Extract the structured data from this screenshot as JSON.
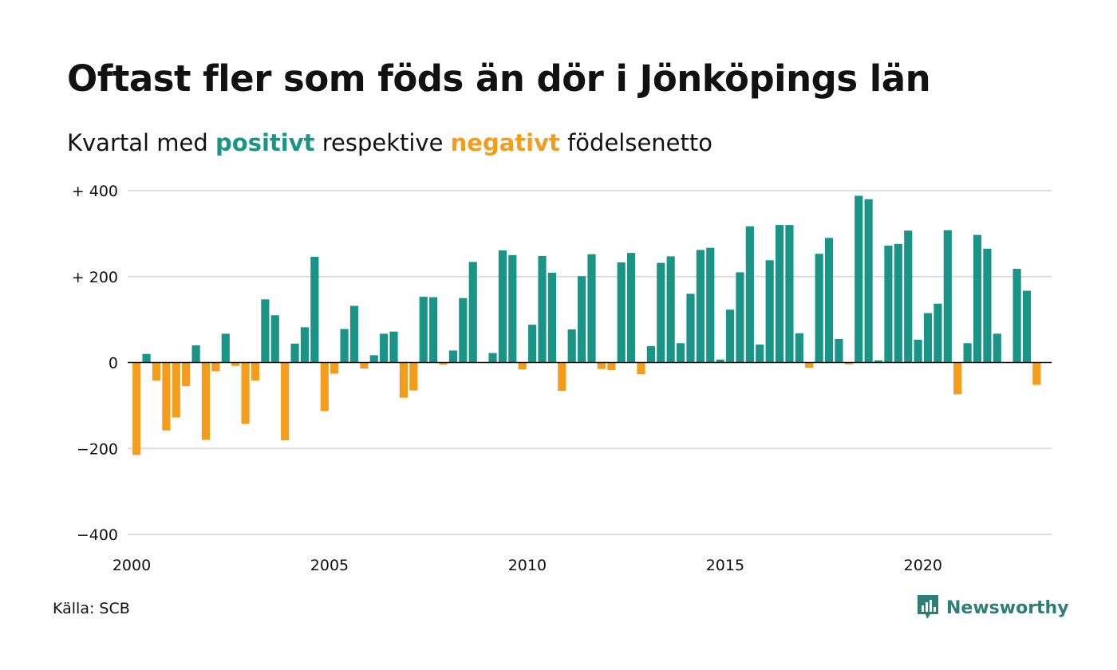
{
  "title": "Oftast fler som föds än dör i Jönköpings län",
  "subtitle": {
    "prefix": "Kvartal med ",
    "positive_word": "positivt",
    "middle": " respektive ",
    "negative_word": "negativt",
    "suffix": " födelsenetto"
  },
  "source": "Källa: SCB",
  "brand": "Newsworthy",
  "colors": {
    "positive": "#1a9486",
    "negative": "#f59c1b",
    "grid": "#dddddd",
    "brand": "#2c7f75"
  },
  "chart_data": {
    "type": "bar",
    "x_start": 2000,
    "x_step": 0.25,
    "xlim": [
      2000,
      2023.25
    ],
    "ylim": [
      -400,
      400
    ],
    "x_ticks": [
      {
        "value": 2000,
        "label": "2000"
      },
      {
        "value": 2005,
        "label": "2005"
      },
      {
        "value": 2010,
        "label": "2010"
      },
      {
        "value": 2015,
        "label": "2015"
      },
      {
        "value": 2020,
        "label": "2020"
      }
    ],
    "y_ticks": [
      {
        "value": 400,
        "label": "+ 400"
      },
      {
        "value": 200,
        "label": "+ 200"
      },
      {
        "value": 0,
        "label": "0"
      },
      {
        "value": -200,
        "label": "−200"
      },
      {
        "value": -400,
        "label": "−400"
      }
    ],
    "grid": true,
    "values": [
      -215,
      20,
      -42,
      -158,
      -128,
      -55,
      40,
      -180,
      -20,
      67,
      -8,
      -143,
      -42,
      147,
      110,
      -181,
      44,
      82,
      246,
      -113,
      -26,
      78,
      132,
      -14,
      17,
      67,
      72,
      -82,
      -65,
      153,
      152,
      -5,
      28,
      150,
      234,
      0,
      22,
      261,
      250,
      -16,
      88,
      248,
      209,
      -66,
      77,
      201,
      252,
      -15,
      -18,
      233,
      255,
      -27,
      38,
      232,
      247,
      45,
      160,
      262,
      267,
      7,
      123,
      210,
      317,
      42,
      238,
      320,
      320,
      68,
      -12,
      253,
      290,
      55,
      -4,
      388,
      380,
      5,
      272,
      276,
      307,
      53,
      115,
      137,
      308,
      -74,
      45,
      297,
      265,
      67,
      0,
      218,
      167,
      -52
    ]
  }
}
